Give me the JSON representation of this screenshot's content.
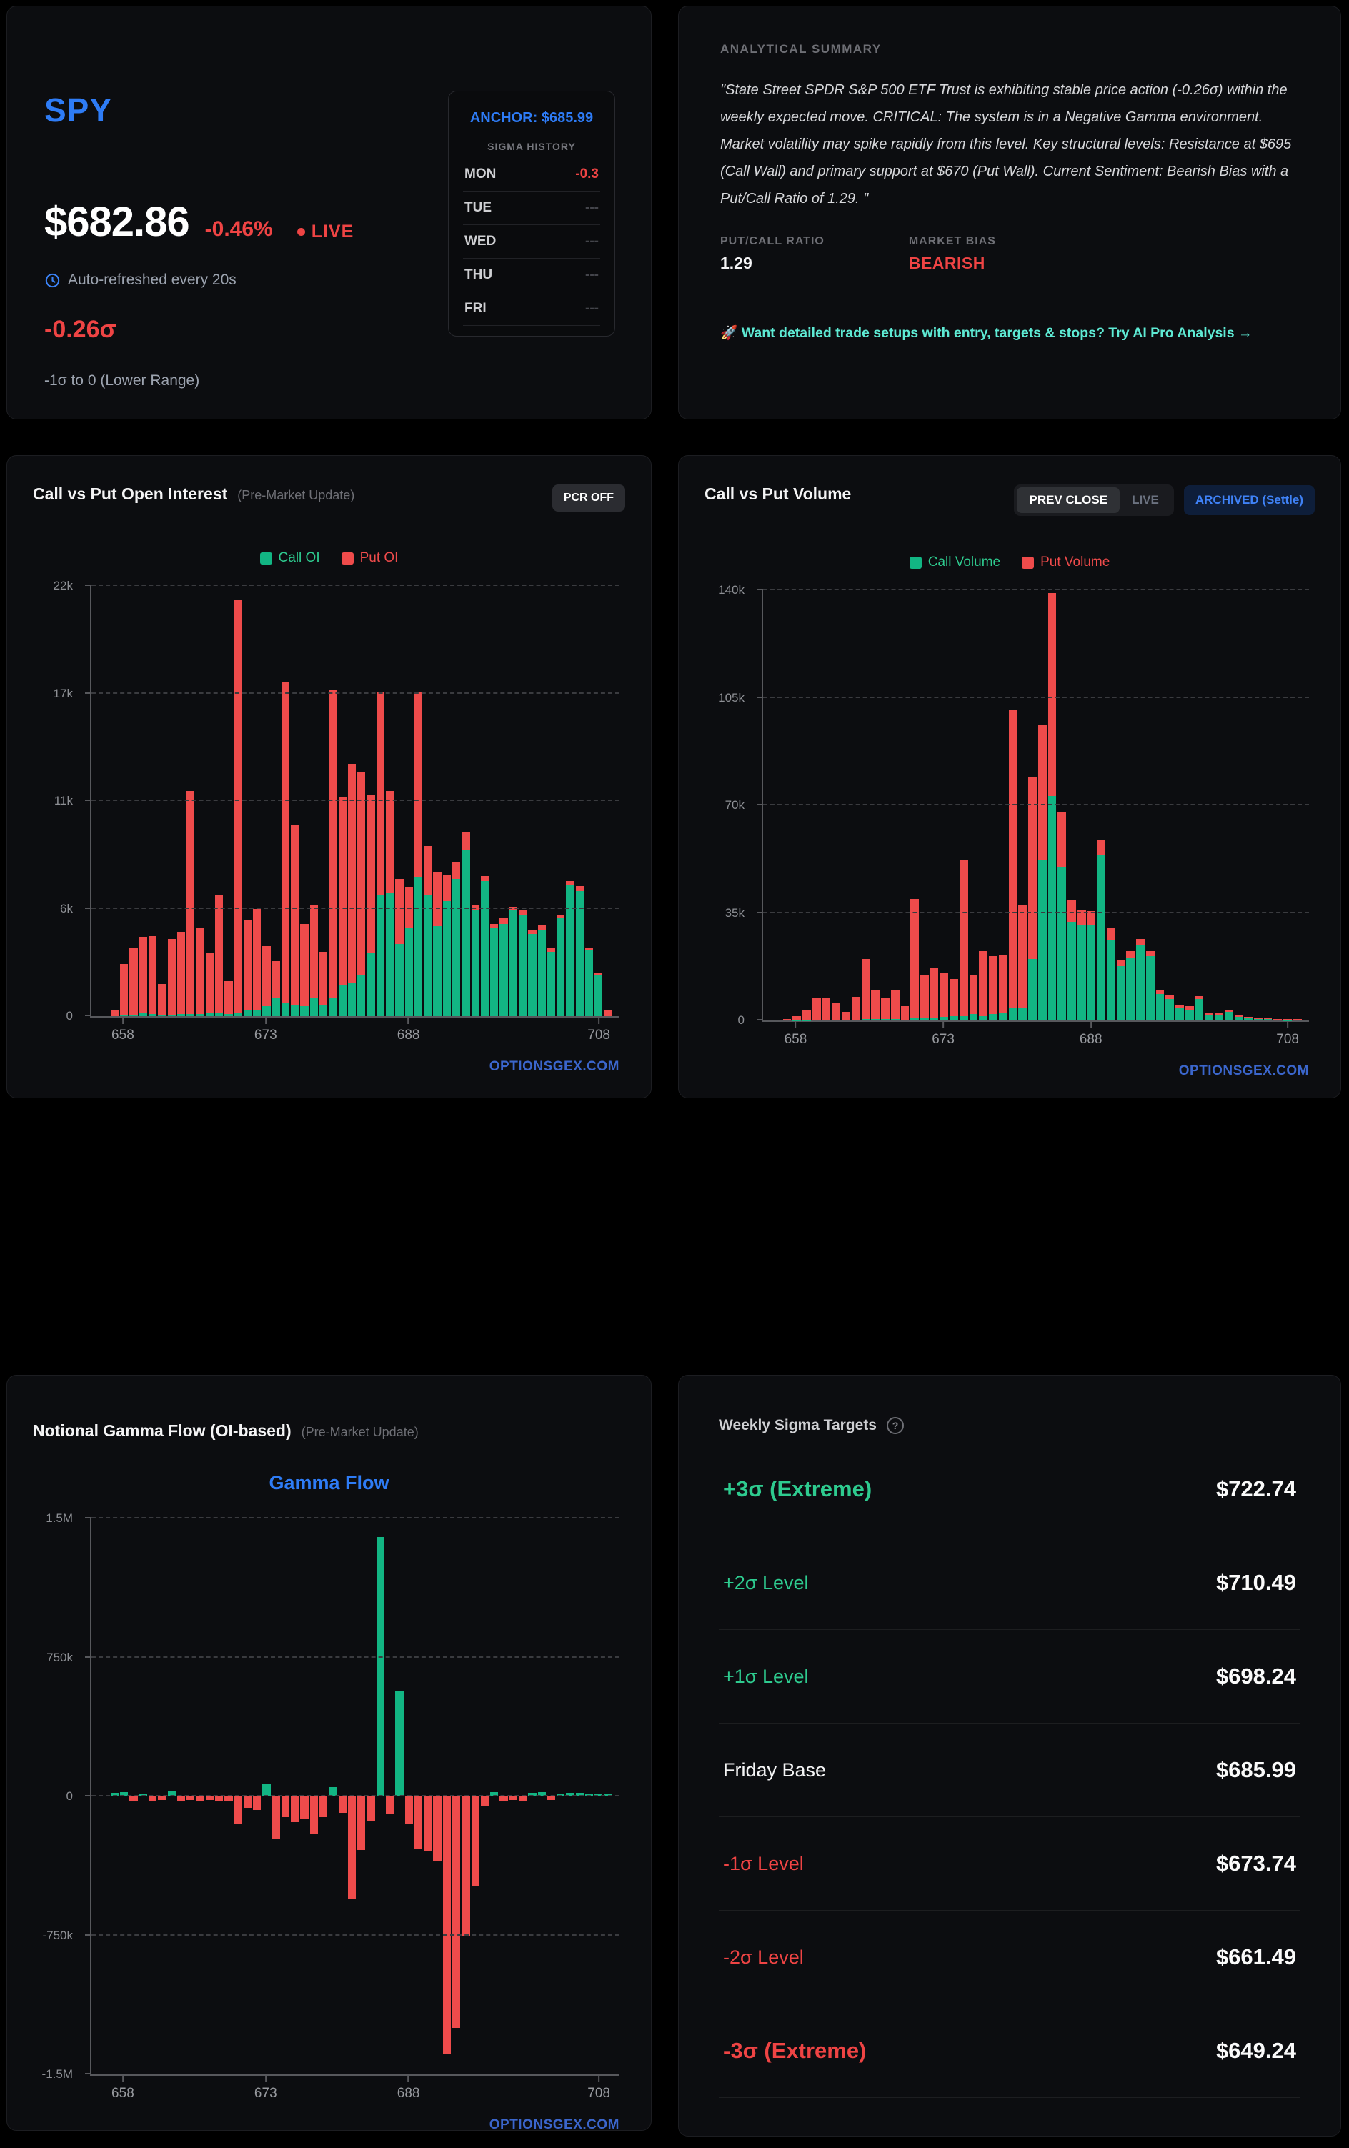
{
  "watermark": "OPTIONSGEX.COM",
  "colors": {
    "accent_blue": "#2e7cf6",
    "bear_red": "#ef4444",
    "call_green": "#12b583",
    "put_red": "#ef4b4b",
    "cta_teal": "#5eead4"
  },
  "ticker_card": {
    "symbol": "SPY",
    "price": "$682.86",
    "change_pct": "-0.46%",
    "live_label": "LIVE",
    "refresh_note": "Auto-refreshed every 20s",
    "sigma_value": "-0.26σ",
    "sigma_range_note": "-1σ to 0 (Lower Range)",
    "anchor_label": "ANCHOR: $685.99",
    "sigma_history_title": "SIGMA HISTORY",
    "sigma_history": [
      {
        "day": "MON",
        "value": "-0.3",
        "tone": "neg"
      },
      {
        "day": "TUE",
        "value": "---",
        "tone": "dim"
      },
      {
        "day": "WED",
        "value": "---",
        "tone": "dim"
      },
      {
        "day": "THU",
        "value": "---",
        "tone": "dim"
      },
      {
        "day": "FRI",
        "value": "---",
        "tone": "dim"
      }
    ]
  },
  "summary_card": {
    "title": "ANALYTICAL SUMMARY",
    "quote": "\"State Street SPDR S&P 500 ETF Trust is exhibiting stable price action (-0.26σ) within the weekly expected move. CRITICAL: The system is in a Negative Gamma environment. Market volatility may spike rapidly from this level. Key structural levels: Resistance at $695 (Call Wall) and primary support at $670 (Put Wall). Current Sentiment: Bearish Bias with a Put/Call Ratio of 1.29. \"",
    "pcr_label": "PUT/CALL RATIO",
    "pcr_value": "1.29",
    "bias_label": "MARKET BIAS",
    "bias_value": "BEARISH",
    "cta": "🚀 Want detailed trade setups with entry, targets & stops? Try AI Pro Analysis →"
  },
  "oi_card": {
    "button_label": "PCR OFF"
  },
  "volume_card": {
    "toggle": {
      "prev_close": "PREV CLOSE",
      "live": "LIVE"
    },
    "archived_label": "ARCHIVED (Settle)"
  },
  "gamma_card": {
    "chart_heading": "Gamma Flow"
  },
  "sigma_targets": {
    "title": "Weekly Sigma Targets",
    "help_icon": "?",
    "rows": [
      {
        "label": "+3σ (Extreme)",
        "value": "$722.74",
        "tone": "pos",
        "emphasis": true
      },
      {
        "label": "+2σ Level",
        "value": "$710.49",
        "tone": "pos",
        "emphasis": false
      },
      {
        "label": "+1σ Level",
        "value": "$698.24",
        "tone": "pos",
        "emphasis": false
      },
      {
        "label": "Friday Base",
        "value": "$685.99",
        "tone": "neutral",
        "emphasis": false
      },
      {
        "label": "-1σ Level",
        "value": "$673.74",
        "tone": "neg",
        "emphasis": false
      },
      {
        "label": "-2σ Level",
        "value": "$661.49",
        "tone": "neg",
        "emphasis": false
      },
      {
        "label": "-3σ (Extreme)",
        "value": "$649.24",
        "tone": "neg",
        "emphasis": true
      }
    ]
  },
  "chart_data": [
    {
      "id": "open_interest",
      "type": "bar",
      "stacked": true,
      "title": "Call vs Put Open Interest",
      "subtitle": "(Pre-Market Update)",
      "legend": [
        "Call OI",
        "Put OI"
      ],
      "legend_position": "top-center",
      "grid": "dashed-horizontal",
      "xlabel": "strike",
      "ylim": [
        0,
        22000
      ],
      "y_tick_labels": [
        "0",
        "6k",
        "11k",
        "17k",
        "22k"
      ],
      "x_tick_strikes": [
        658,
        673,
        688,
        708
      ],
      "x": [
        657,
        658,
        659,
        660,
        661,
        662,
        663,
        664,
        665,
        666,
        667,
        668,
        669,
        670,
        671,
        672,
        673,
        674,
        675,
        676,
        677,
        678,
        679,
        680,
        681,
        682,
        683,
        684,
        685,
        686,
        687,
        688,
        689,
        690,
        691,
        692,
        693,
        694,
        695,
        696,
        697,
        698,
        699,
        700,
        701,
        702,
        703,
        704,
        705,
        706,
        707,
        708,
        709
      ],
      "series": [
        {
          "name": "Call OI",
          "values": [
            0,
            60,
            60,
            150,
            100,
            60,
            60,
            100,
            120,
            100,
            150,
            200,
            100,
            200,
            300,
            300,
            500,
            900,
            700,
            600,
            500,
            900,
            600,
            900,
            1600,
            1700,
            2100,
            3200,
            6200,
            6300,
            3700,
            4500,
            7100,
            6200,
            4600,
            5900,
            7000,
            8500,
            5400,
            6900,
            4500,
            4700,
            5400,
            5200,
            4200,
            4400,
            3300,
            5000,
            6700,
            6400,
            3400,
            2100,
            0
          ]
        },
        {
          "name": "Put OI",
          "values": [
            300,
            2600,
            3400,
            3900,
            4000,
            1600,
            3900,
            4200,
            11400,
            4400,
            3100,
            6000,
            1700,
            21100,
            4600,
            5200,
            3100,
            1900,
            16400,
            9200,
            4200,
            4800,
            2700,
            15800,
            9600,
            11200,
            10400,
            8100,
            10400,
            5200,
            3300,
            2100,
            9500,
            2500,
            2800,
            1300,
            900,
            900,
            300,
            250,
            200,
            300,
            200,
            250,
            200,
            250,
            200,
            150,
            200,
            250,
            100,
            100,
            300
          ]
        }
      ]
    },
    {
      "id": "volume",
      "type": "bar",
      "stacked": true,
      "title": "Call vs Put Volume",
      "subtitle": "",
      "legend": [
        "Call Volume",
        "Put Volume"
      ],
      "legend_position": "top-center",
      "grid": "dashed-horizontal",
      "xlabel": "strike",
      "ylim": [
        0,
        140000
      ],
      "y_tick_labels": [
        "0",
        "35k",
        "70k",
        "105k",
        "140k"
      ],
      "x_tick_strikes": [
        658,
        673,
        688,
        708
      ],
      "x": [
        657,
        658,
        659,
        660,
        661,
        662,
        663,
        664,
        665,
        666,
        667,
        668,
        669,
        670,
        671,
        672,
        673,
        674,
        675,
        676,
        677,
        678,
        679,
        680,
        681,
        682,
        683,
        684,
        685,
        686,
        687,
        688,
        689,
        690,
        691,
        692,
        693,
        694,
        695,
        696,
        697,
        698,
        699,
        700,
        701,
        702,
        703,
        704,
        705,
        706,
        707,
        708,
        709
      ],
      "series": [
        {
          "name": "Call Volume",
          "values": [
            0,
            100,
            100,
            200,
            200,
            200,
            200,
            300,
            400,
            400,
            400,
            400,
            300,
            1000,
            800,
            900,
            1200,
            1500,
            1500,
            2000,
            1500,
            2000,
            2500,
            4000,
            4000,
            20000,
            52000,
            73000,
            50000,
            32000,
            31000,
            31000,
            54000,
            26000,
            17600,
            20500,
            24500,
            21000,
            8500,
            7000,
            4000,
            3600,
            7000,
            1800,
            1800,
            2800,
            1200,
            800,
            500,
            400,
            300,
            100,
            0
          ]
        },
        {
          "name": "Put Volume",
          "values": [
            500,
            1200,
            3500,
            7300,
            7100,
            5400,
            2600,
            7400,
            19600,
            9600,
            6800,
            9400,
            4400,
            38500,
            14200,
            16100,
            14300,
            12000,
            50500,
            12800,
            21100,
            19000,
            19000,
            97000,
            33500,
            59000,
            44000,
            66000,
            18000,
            7000,
            5000,
            4500,
            4500,
            4000,
            2000,
            2000,
            2000,
            1500,
            1400,
            1400,
            1000,
            1000,
            1000,
            800,
            800,
            800,
            500,
            400,
            300,
            200,
            200,
            400,
            400
          ]
        }
      ]
    },
    {
      "id": "gamma_flow",
      "type": "bar",
      "signed": true,
      "title": "Notional Gamma Flow (OI-based)",
      "subtitle": "(Pre-Market Update)",
      "chart_heading": "Gamma Flow",
      "grid": "dashed-horizontal",
      "xlabel": "strike",
      "ylim_k": [
        -1500,
        1500
      ],
      "y_tick_labels": [
        "-1.5M",
        "-750k",
        "0",
        "750k",
        "1.5M"
      ],
      "x_tick_strikes": [
        658,
        673,
        688,
        708
      ],
      "x": [
        657,
        658,
        659,
        660,
        661,
        662,
        663,
        664,
        665,
        666,
        667,
        668,
        669,
        670,
        671,
        672,
        673,
        674,
        675,
        676,
        677,
        678,
        679,
        680,
        681,
        682,
        683,
        684,
        685,
        686,
        687,
        688,
        689,
        690,
        691,
        692,
        693,
        694,
        695,
        696,
        697,
        698,
        699,
        700,
        701,
        702,
        703,
        704,
        705,
        706,
        707,
        708,
        709
      ],
      "values_k": [
        18,
        22,
        -28,
        14,
        -22,
        -18,
        28,
        -22,
        -18,
        -22,
        -18,
        -24,
        -28,
        -150,
        -60,
        -75,
        70,
        -230,
        -110,
        -140,
        -120,
        -200,
        -110,
        50,
        -90,
        -550,
        -290,
        -130,
        1400,
        -95,
        570,
        -150,
        -280,
        -295,
        -350,
        -1390,
        -1250,
        -750,
        -485,
        -50,
        25,
        -22,
        -18,
        -28,
        18,
        22,
        -18,
        16,
        18,
        20,
        16,
        14,
        10
      ]
    }
  ]
}
